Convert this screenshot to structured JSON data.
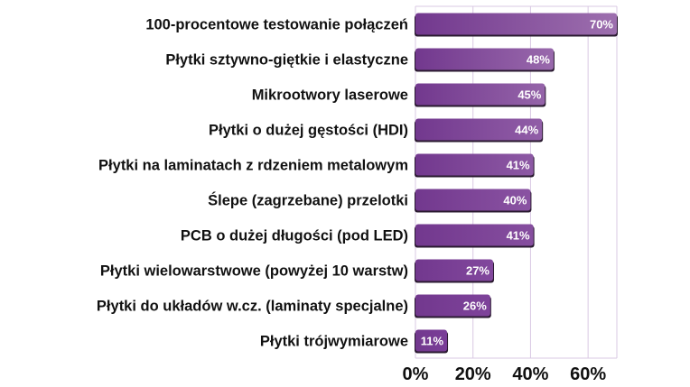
{
  "chart_data": {
    "type": "bar",
    "orientation": "horizontal",
    "categories": [
      "100-procentowe testowanie połączeń",
      "Płytki sztywno-giętkie i elastyczne",
      "Mikrootwory laserowe",
      "Płytki o dużej gęstości (HDI)",
      "Płytki na laminatach z rdzeniem metalowym",
      "Ślepe (zagrzebane) przelotki",
      "PCB o dużej długości (pod LED)",
      "Płytki wielowarstwowe (powyżej 10 warstw)",
      "Płytki do układów w.cz. (laminaty specjalne)",
      "Płytki trójwymiarowe"
    ],
    "values": [
      70,
      48,
      45,
      44,
      41,
      40,
      41,
      27,
      26,
      11
    ],
    "value_labels": [
      "70%",
      "48%",
      "45%",
      "44%",
      "41%",
      "40%",
      "41%",
      "27%",
      "26%",
      "11%"
    ],
    "xticks": [
      "0%",
      "20%",
      "40%",
      "60%"
    ],
    "xtick_values": [
      0,
      20,
      40,
      60
    ],
    "xlim": [
      0,
      70
    ],
    "grid": true,
    "title": "",
    "xlabel": "",
    "ylabel": "",
    "colors": {
      "bar_top": "#9d6fae",
      "bar_bottom": "#7a3d98",
      "shadow": "#2a1a30",
      "grid": "#d9c8e3"
    }
  }
}
